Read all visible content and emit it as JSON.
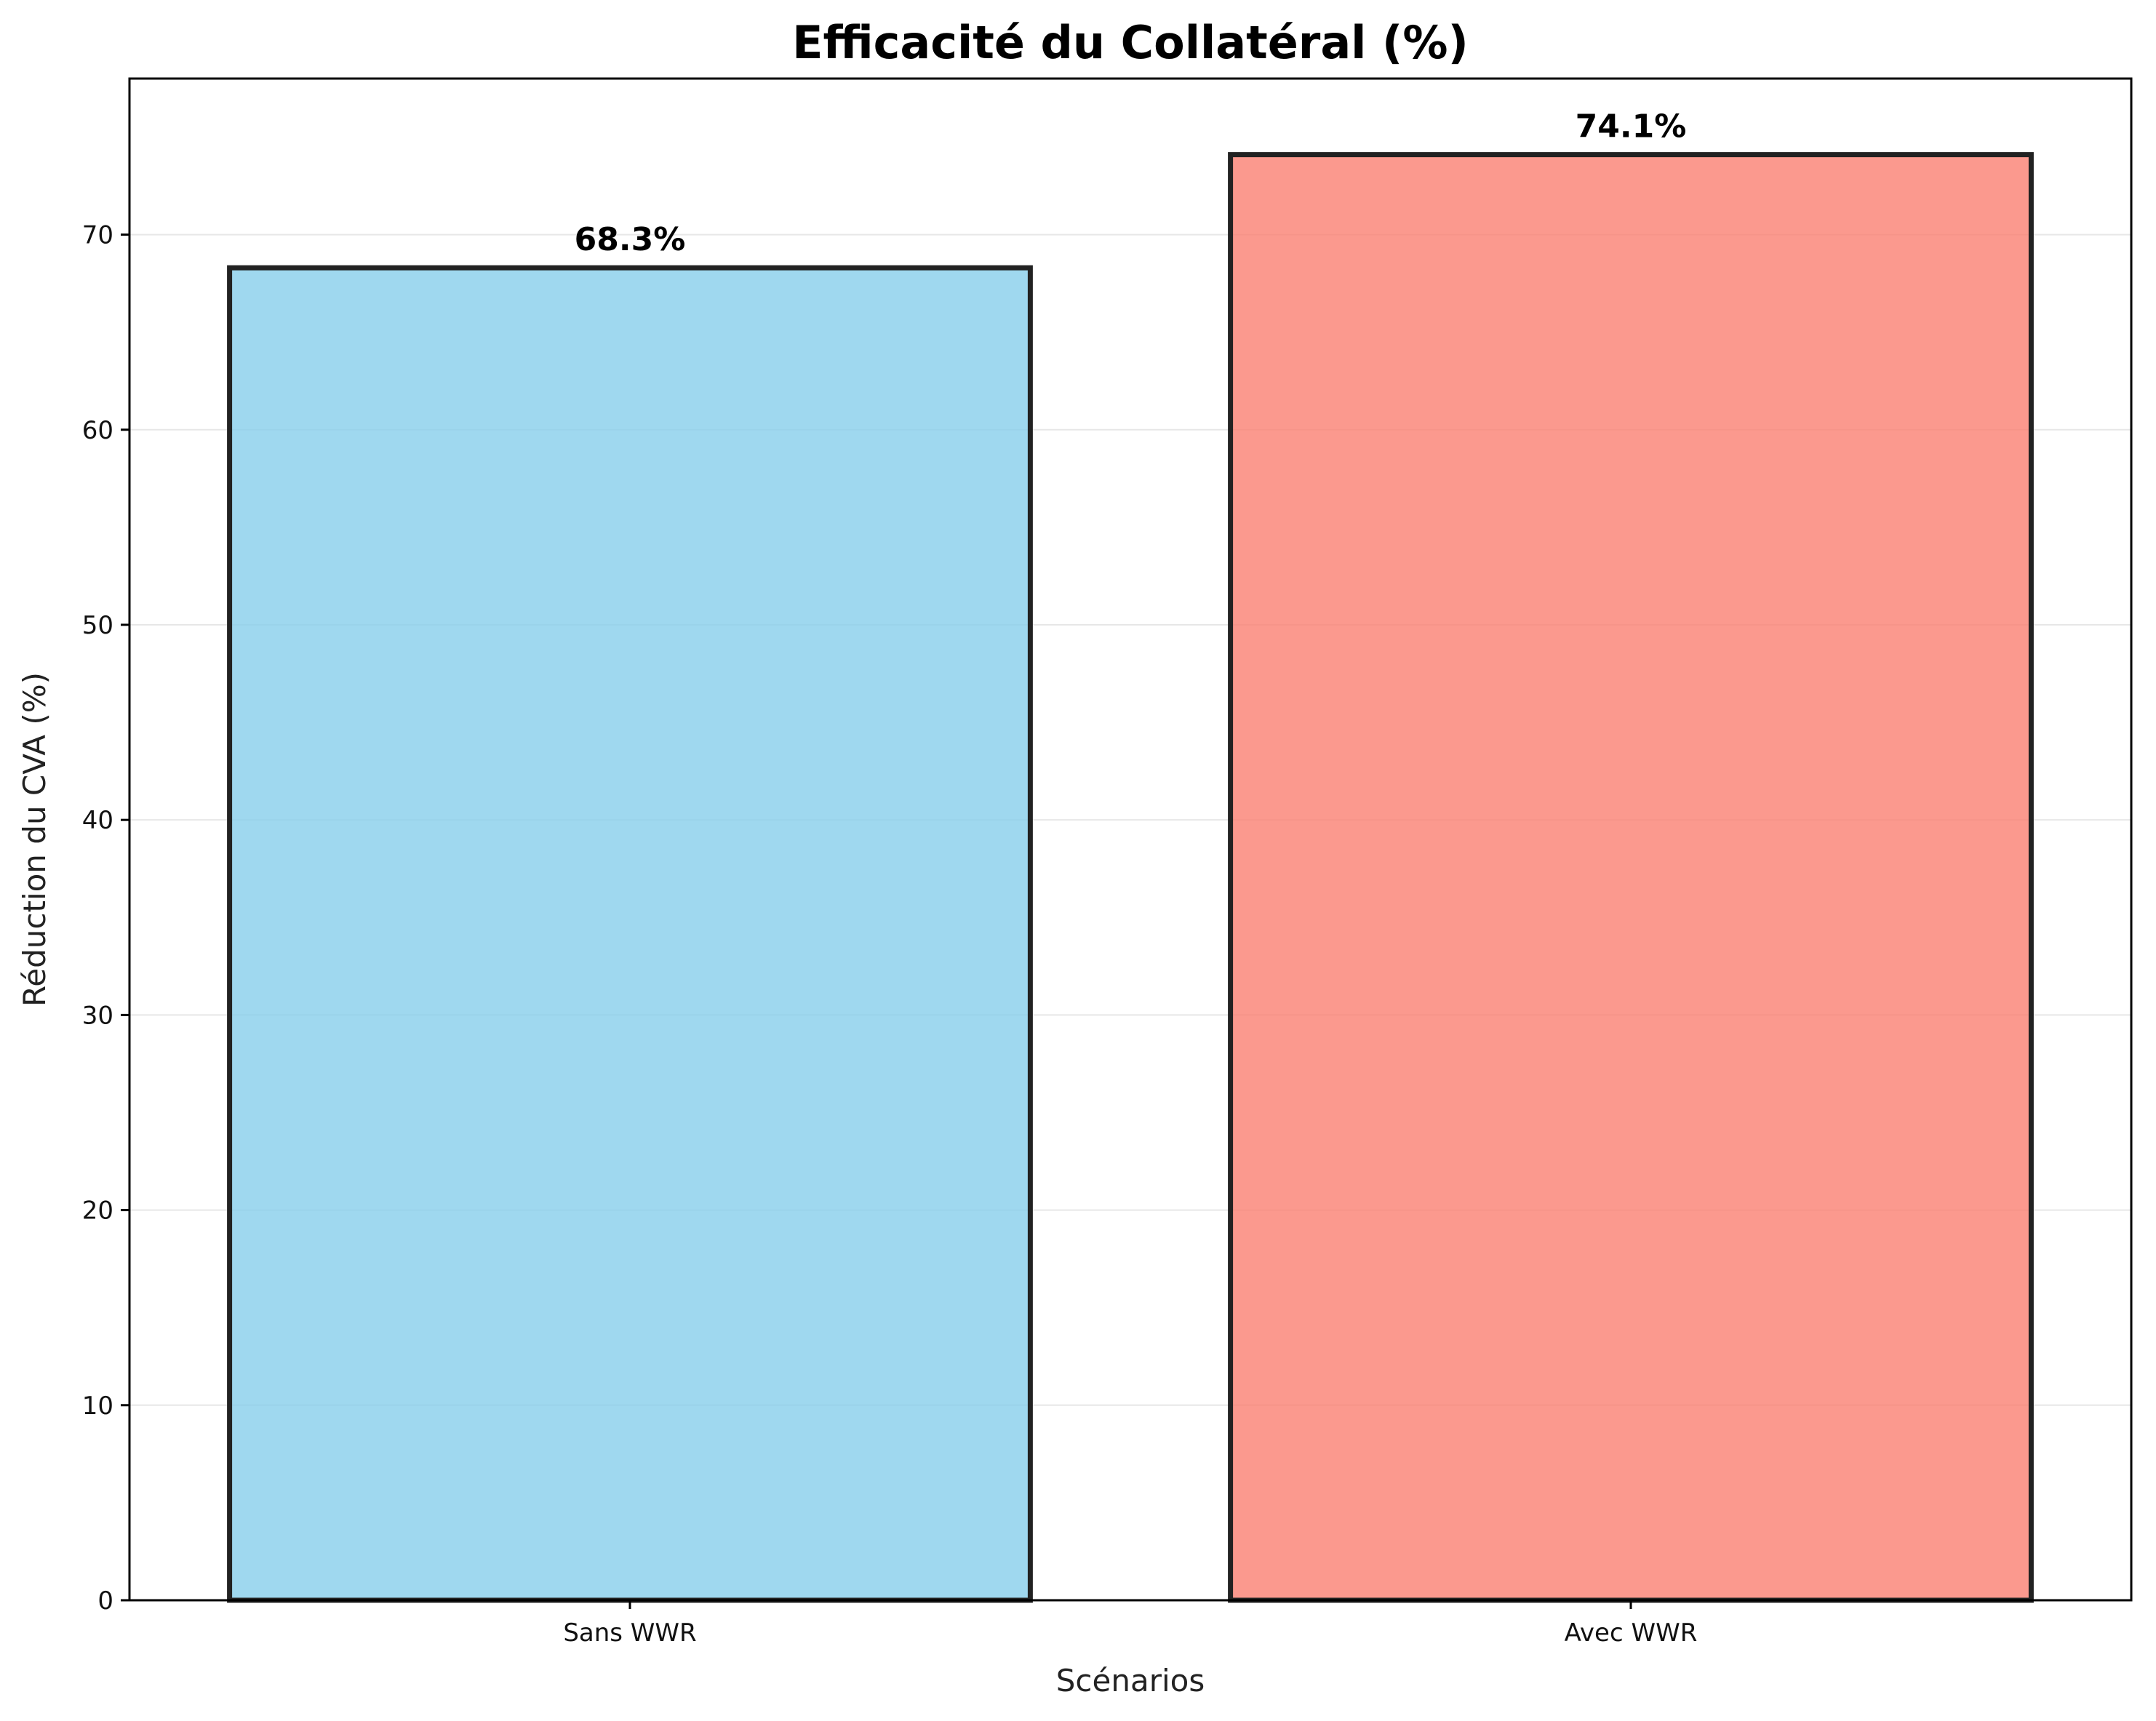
{
  "chart_data": {
    "type": "bar",
    "title": "Efficacité du Collatéral (%)",
    "xlabel": "Scénarios",
    "ylabel": "Réduction du CVA (%)",
    "categories": [
      "Sans WWR",
      "Avec WWR"
    ],
    "values": [
      68.3,
      74.1
    ],
    "value_labels": [
      "68.3%",
      "74.1%"
    ],
    "colors": [
      "#87CEEB",
      "#FA8072"
    ],
    "edge_color": "#222222",
    "ylim": [
      0,
      78
    ],
    "yticks": [
      0,
      10,
      20,
      30,
      40,
      50,
      60,
      70
    ],
    "grid": "y-axis, light gray",
    "legend": "none"
  }
}
